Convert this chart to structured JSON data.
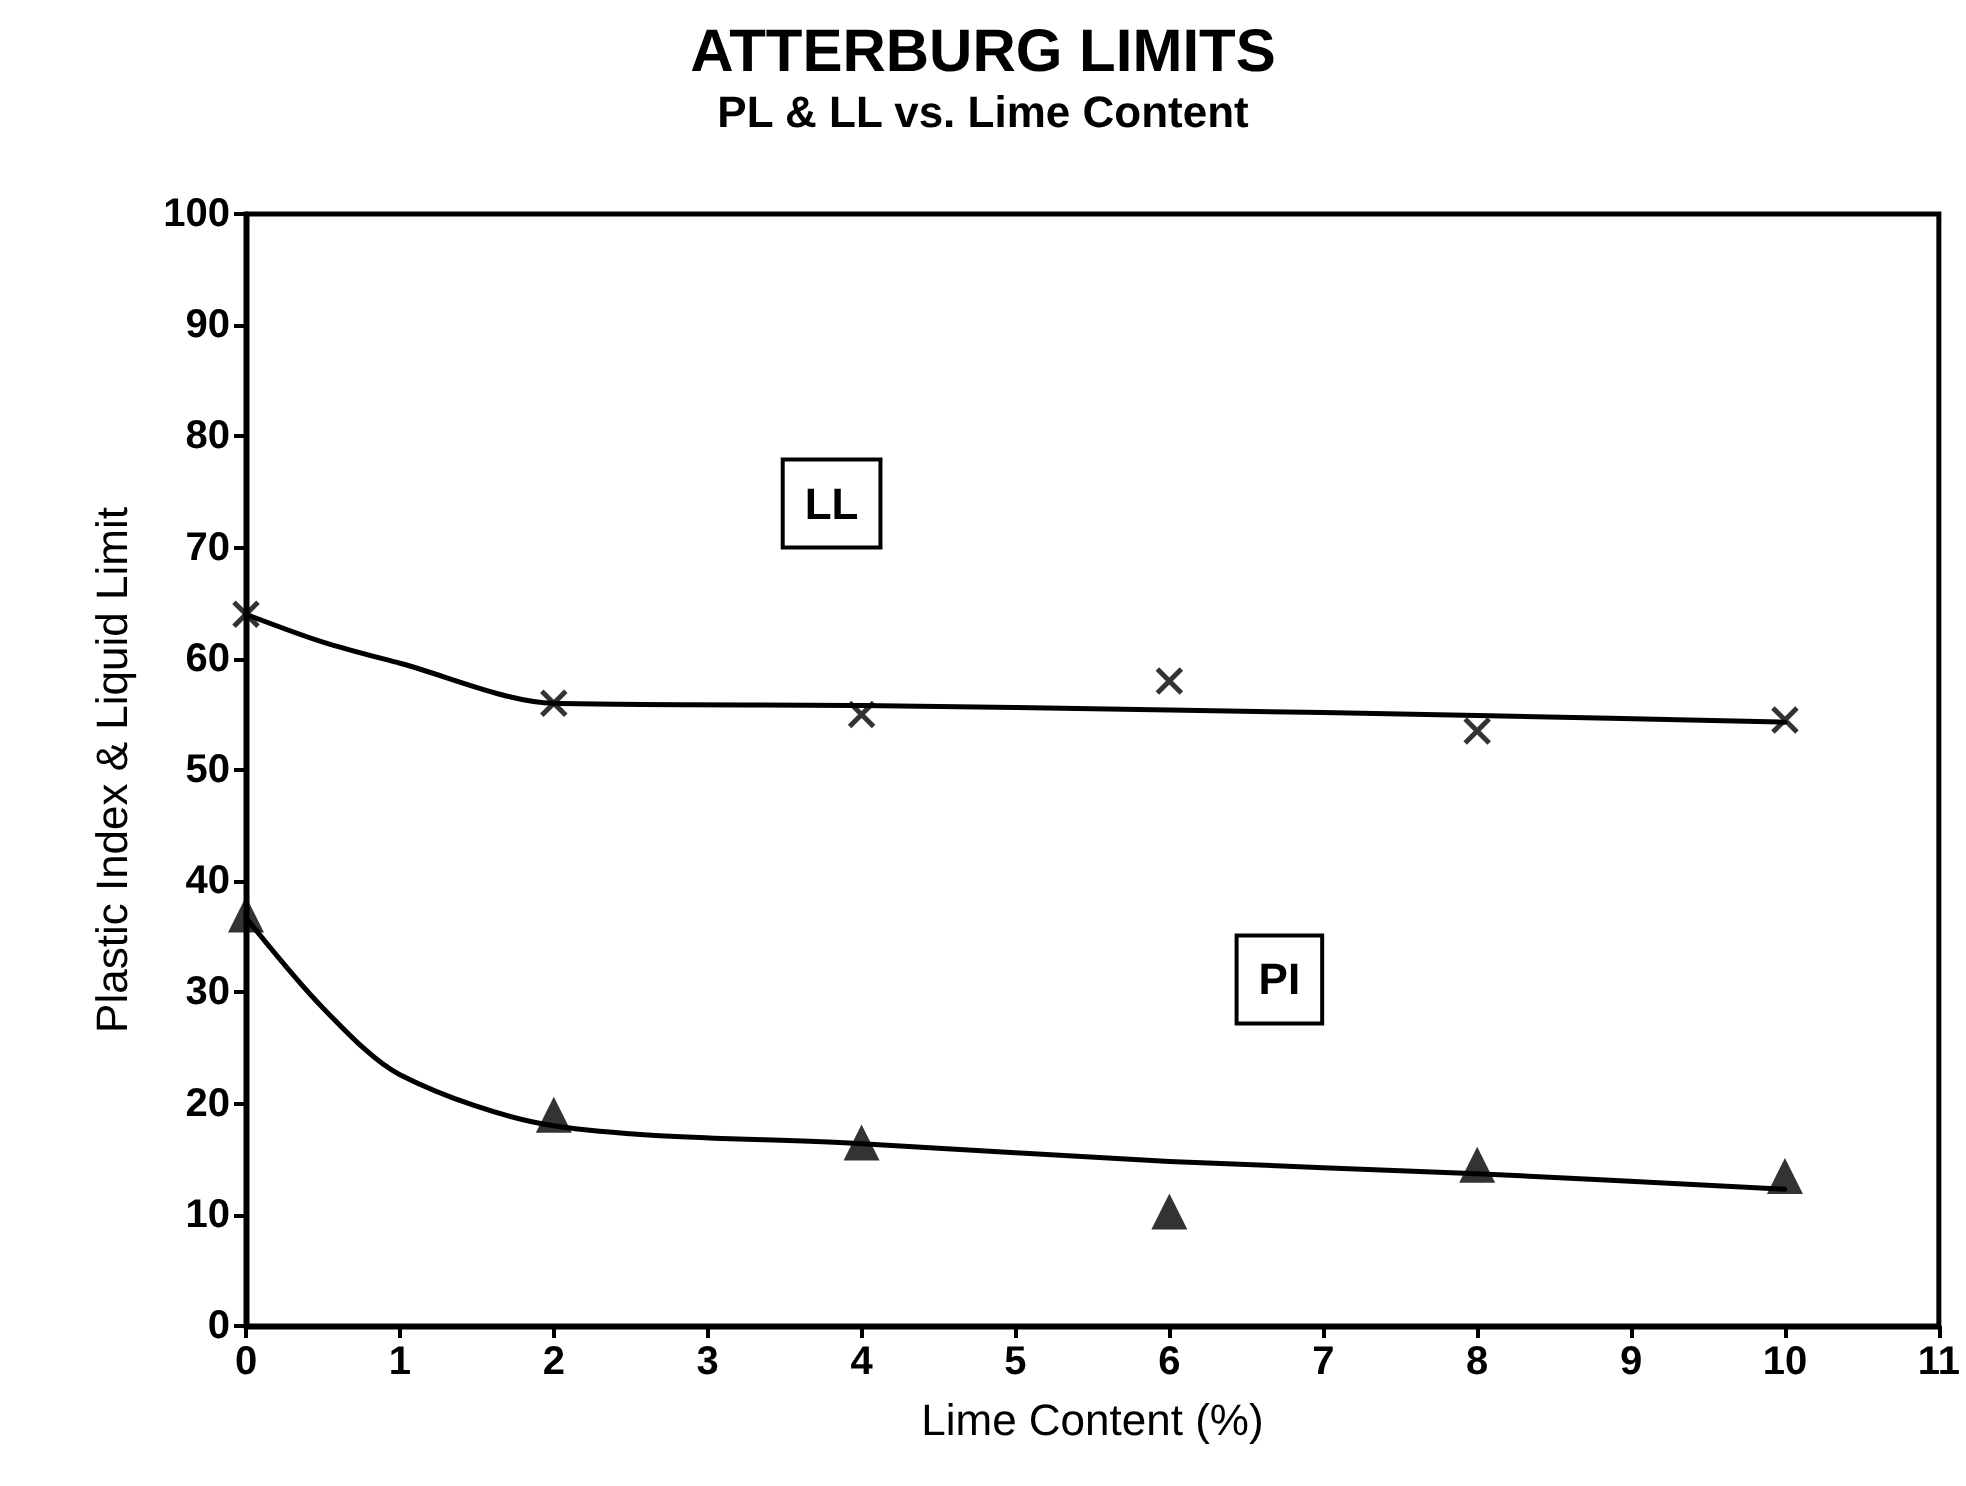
{
  "chart_data": {
    "type": "scatter",
    "title": "ATTERBURG LIMITS",
    "subtitle": "PL & LL vs. Lime Content",
    "xlabel": "Lime Content (%)",
    "ylabel": "Plastic Index & Liquid Limit",
    "x": [
      0,
      2,
      4,
      6,
      8,
      10
    ],
    "series": [
      {
        "marker": "cross",
        "color": "#000000",
        "values": [
          64,
          56,
          55,
          58,
          53.5,
          54.5
        ]
      },
      {
        "type": "line",
        "name": "LL",
        "marker": "none",
        "color": "#000000",
        "x": [
          0,
          0.5,
          1,
          2,
          4,
          6,
          8,
          10
        ],
        "values": [
          64,
          61.5,
          59.6,
          56,
          55.8,
          55.4,
          54.9,
          54.3
        ]
      },
      {
        "marker": "triangle",
        "color": "#000000",
        "values": [
          37,
          19,
          16.5,
          10.3,
          14.5,
          13.5
        ]
      },
      {
        "type": "line",
        "name": "PI",
        "marker": "none",
        "color": "#000000",
        "x": [
          0,
          0.5,
          1,
          2,
          4,
          6,
          8,
          10
        ],
        "values": [
          36.7,
          28.6,
          22.6,
          18,
          16.4,
          14.8,
          13.7,
          12.3
        ]
      }
    ],
    "xlim": [
      0,
      11
    ],
    "xticks": [
      0,
      1,
      2,
      3,
      4,
      5,
      6,
      7,
      8,
      9,
      10,
      11
    ],
    "ylim": [
      0,
      100
    ],
    "yticks": [
      0,
      10,
      20,
      30,
      40,
      50,
      60,
      70,
      80,
      90,
      100
    ],
    "grid": false,
    "legend": false,
    "line_style": "solid"
  }
}
